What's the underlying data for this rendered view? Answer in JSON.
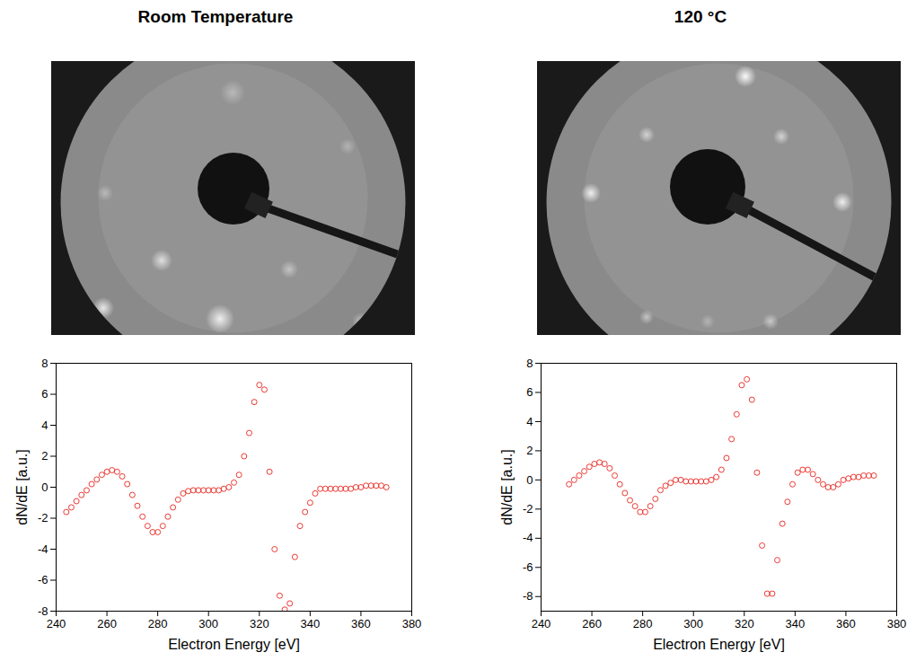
{
  "chart_data": [
    {
      "type": "scatter",
      "title": "Room Temperature",
      "xlabel": "Electron Energy [eV]",
      "ylabel": "dN/dE [a.u.]",
      "xlim": [
        240,
        380
      ],
      "xticks": [
        240,
        260,
        280,
        300,
        320,
        340,
        360,
        380
      ],
      "ylim": [
        -8,
        8
      ],
      "yticks": [
        -8,
        -6,
        -4,
        -2,
        0,
        2,
        4,
        6,
        8
      ],
      "grid": false,
      "color": "#e8261f",
      "marker": "circle",
      "x": [
        244,
        246,
        248,
        250,
        252,
        254,
        256,
        258,
        260,
        262,
        264,
        266,
        268,
        270,
        272,
        274,
        276,
        278,
        280,
        282,
        284,
        286,
        288,
        290,
        292,
        294,
        296,
        298,
        300,
        302,
        304,
        306,
        308,
        310,
        312,
        314,
        316,
        318,
        320,
        322,
        324,
        326,
        328,
        330,
        332,
        334,
        336,
        338,
        340,
        342,
        344,
        346,
        348,
        350,
        352,
        354,
        356,
        358,
        360,
        362,
        364,
        366,
        368,
        370
      ],
      "values": [
        -1.6,
        -1.3,
        -0.9,
        -0.5,
        -0.2,
        0.2,
        0.5,
        0.8,
        1.0,
        1.1,
        1.0,
        0.7,
        0.2,
        -0.5,
        -1.2,
        -1.9,
        -2.5,
        -2.9,
        -2.9,
        -2.5,
        -1.9,
        -1.3,
        -0.8,
        -0.4,
        -0.25,
        -0.2,
        -0.2,
        -0.2,
        -0.2,
        -0.2,
        -0.2,
        -0.1,
        0.0,
        0.3,
        0.8,
        2.0,
        3.5,
        5.5,
        6.6,
        6.3,
        1.0,
        -4.0,
        -7.0,
        -7.9,
        -7.5,
        -4.5,
        -2.5,
        -1.6,
        -1.0,
        -0.4,
        -0.1,
        -0.1,
        -0.1,
        -0.1,
        -0.1,
        -0.1,
        -0.1,
        0.0,
        0.0,
        0.1,
        0.1,
        0.1,
        0.1,
        0.0
      ]
    },
    {
      "type": "scatter",
      "title": "120 °C",
      "xlabel": "Electron Energy [eV]",
      "ylabel": "dN/dE [a.u.]",
      "xlim": [
        240,
        380
      ],
      "xticks": [
        240,
        260,
        280,
        300,
        320,
        340,
        360,
        380
      ],
      "ylim": [
        -9,
        8
      ],
      "yticks": [
        -8,
        -6,
        -4,
        -2,
        0,
        2,
        4,
        6,
        8
      ],
      "grid": false,
      "color": "#e8261f",
      "marker": "circle",
      "x": [
        251,
        253,
        255,
        257,
        259,
        261,
        263,
        265,
        267,
        269,
        271,
        273,
        275,
        277,
        279,
        281,
        283,
        285,
        287,
        289,
        291,
        293,
        295,
        297,
        299,
        301,
        303,
        305,
        307,
        309,
        311,
        313,
        315,
        317,
        319,
        321,
        323,
        325,
        327,
        329,
        331,
        333,
        335,
        337,
        339,
        341,
        343,
        345,
        347,
        349,
        351,
        353,
        355,
        357,
        359,
        361,
        363,
        365,
        367,
        369,
        371
      ],
      "values": [
        -0.3,
        0.0,
        0.3,
        0.6,
        0.9,
        1.1,
        1.2,
        1.1,
        0.8,
        0.3,
        -0.3,
        -0.9,
        -1.4,
        -1.8,
        -2.2,
        -2.2,
        -1.8,
        -1.3,
        -0.7,
        -0.4,
        -0.2,
        0.0,
        0.0,
        -0.1,
        -0.1,
        -0.1,
        -0.1,
        -0.1,
        0.0,
        0.2,
        0.7,
        1.5,
        2.8,
        4.5,
        6.5,
        6.9,
        5.5,
        0.5,
        -4.5,
        -7.8,
        -7.8,
        -5.5,
        -3.0,
        -1.5,
        -0.3,
        0.5,
        0.7,
        0.7,
        0.4,
        0.0,
        -0.3,
        -0.5,
        -0.5,
        -0.3,
        0.0,
        0.1,
        0.2,
        0.2,
        0.3,
        0.3,
        0.3
      ]
    }
  ]
}
